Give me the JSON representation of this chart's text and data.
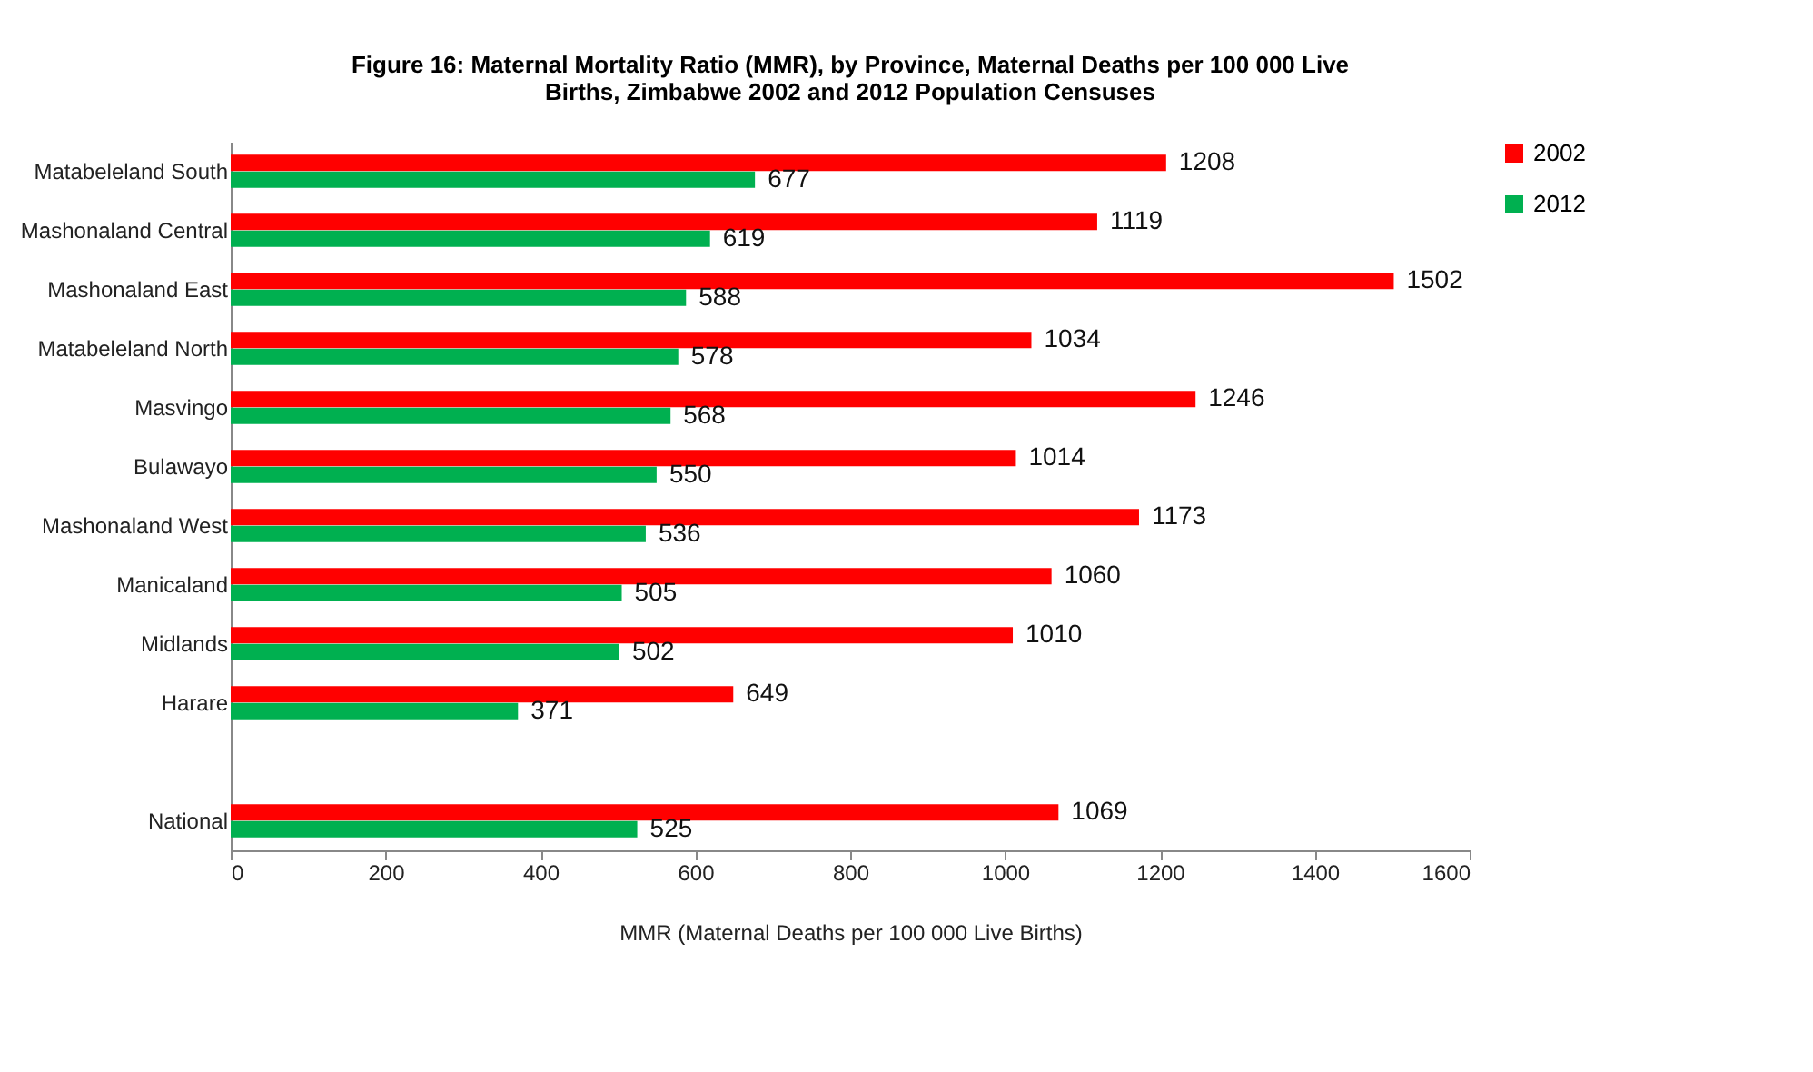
{
  "chart_data": {
    "type": "bar",
    "orientation": "horizontal",
    "title": "Figure 16: Maternal Mortality Ratio (MMR),   by Province,  Maternal Deaths per 100 000 Live Births, Zimbabwe 2002 and 2012 Population  Censuses",
    "xlabel": "MMR (Maternal Deaths per 100 000 Live Births)",
    "categories": [
      "Matabeleland South",
      "Mashonaland Central",
      "Mashonaland East",
      "Matabeleland North",
      "Masvingo",
      "Bulawayo",
      "Mashonaland West",
      "Manicaland",
      "Midlands",
      "Harare",
      null,
      "National"
    ],
    "series": [
      {
        "name": "2002",
        "color": "#ff0000",
        "values": [
          1208,
          1119,
          1502,
          1034,
          1246,
          1014,
          1173,
          1060,
          1010,
          649,
          null,
          1069
        ]
      },
      {
        "name": "2012",
        "color": "#00b050",
        "values": [
          677,
          619,
          588,
          578,
          568,
          550,
          536,
          505,
          502,
          371,
          null,
          525
        ]
      }
    ],
    "xlim": [
      0,
      1600
    ],
    "xticks": [
      0,
      200,
      400,
      600,
      800,
      1000,
      1200,
      1400,
      1600
    ],
    "grid": false,
    "legend": "right",
    "data_labels": true
  }
}
